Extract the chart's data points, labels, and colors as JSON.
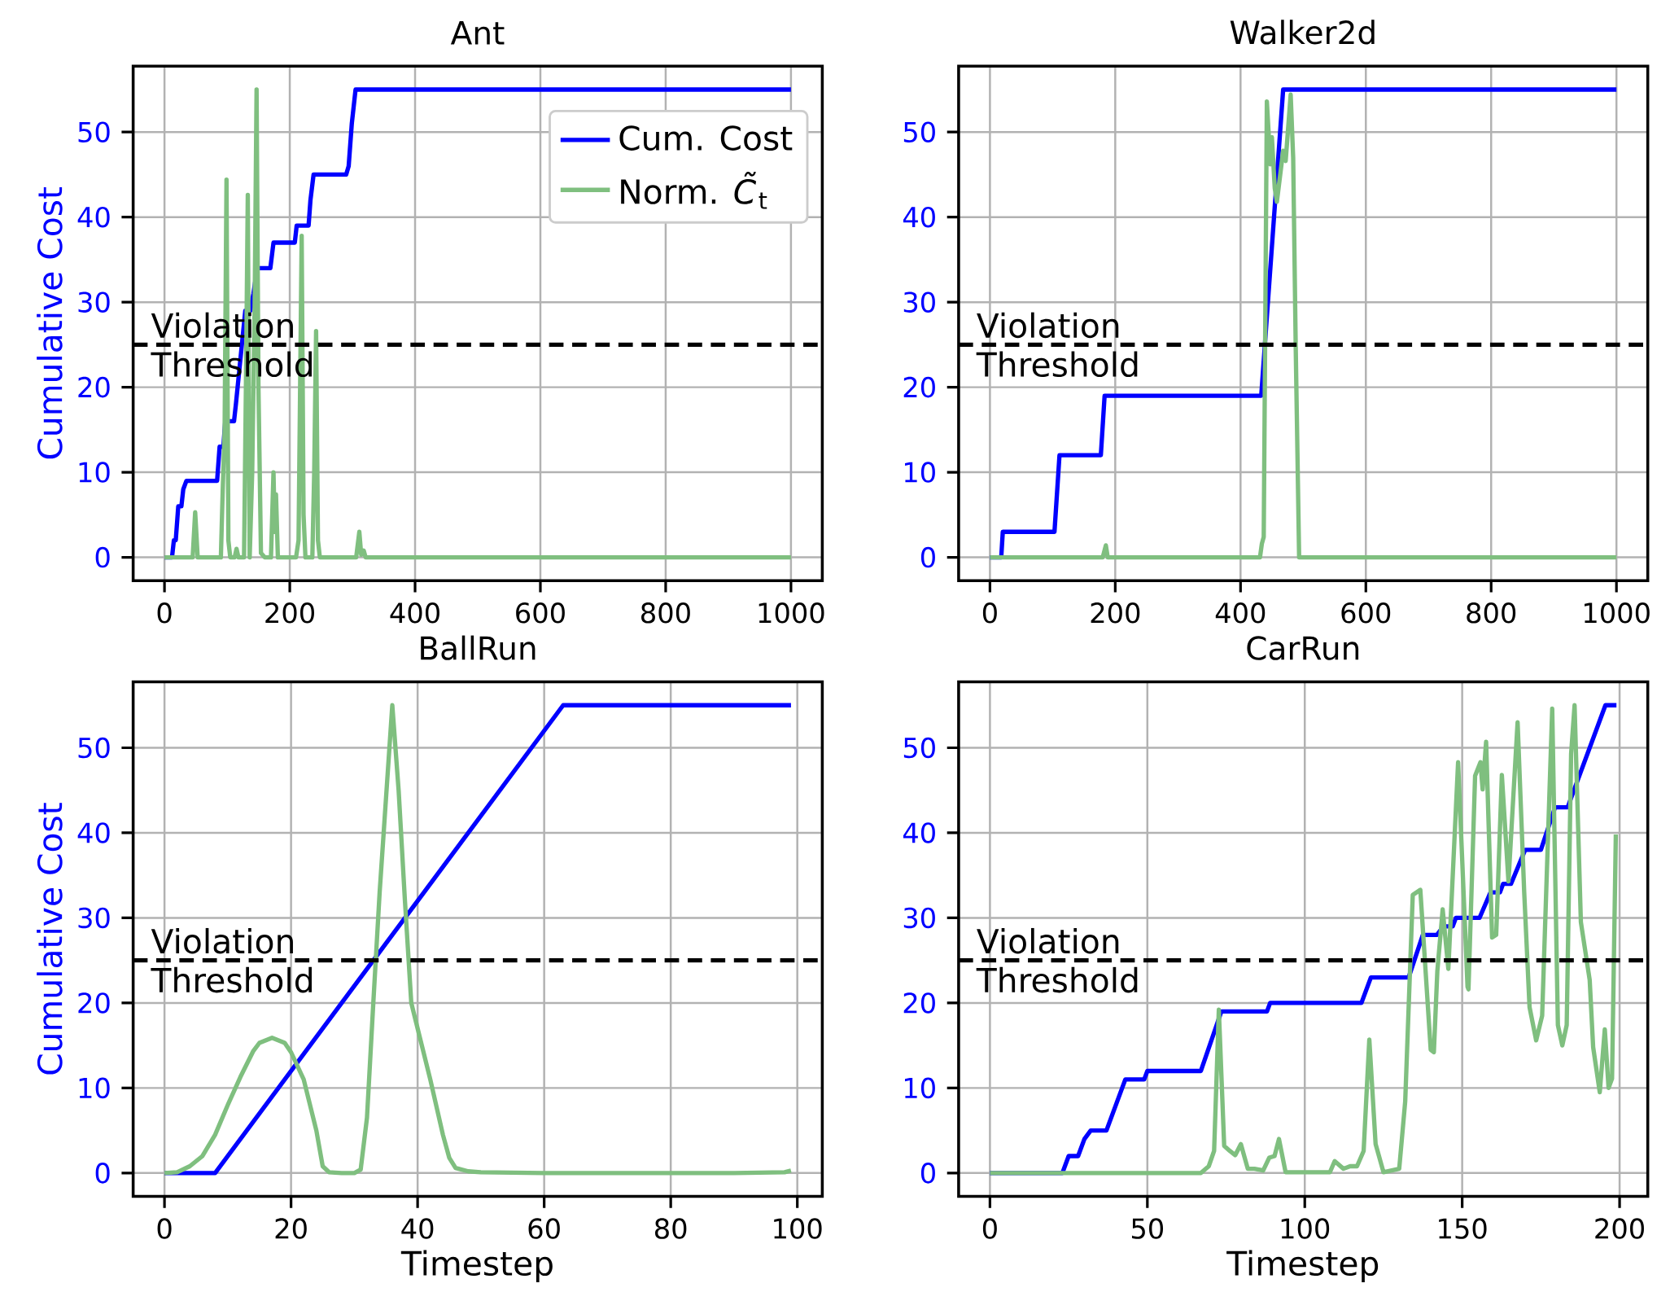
{
  "chart_data": [
    {
      "type": "line",
      "title": "Ant",
      "ylabel": "Cumulative Cost",
      "xlim": [
        -50,
        1050
      ],
      "ylim": [
        -2.75,
        57.75
      ],
      "xticks": [
        0,
        200,
        400,
        600,
        800,
        1000
      ],
      "yticks": [
        0,
        10,
        20,
        30,
        40,
        50
      ],
      "grid": true,
      "legend": "top right",
      "ref_lines": [
        {
          "axis": "y",
          "value": 25,
          "label": "Violation Threshold",
          "color": "#000000",
          "line_style": "dashed"
        }
      ],
      "series": [
        {
          "name": "Cum. Cost",
          "color": "#0000ff",
          "x": [
            0,
            12,
            15,
            18,
            22,
            27,
            30,
            35,
            38,
            84,
            88,
            94,
            97,
            111,
            114,
            129,
            137,
            142,
            148,
            169,
            174,
            208,
            211,
            230,
            233,
            238,
            290,
            294,
            299,
            305,
            1000
          ],
          "values": [
            0,
            0,
            2,
            2,
            6,
            6,
            8,
            9,
            9,
            9,
            13,
            13,
            16,
            16,
            18,
            29,
            29,
            31,
            34,
            34,
            37,
            37,
            39,
            39,
            42,
            45,
            45,
            46,
            51,
            55,
            55
          ]
        },
        {
          "name": "Norm. *C̃*$_{t}$",
          "color": "#7fbf7f",
          "x": [
            0,
            45,
            49,
            53,
            90,
            93,
            96,
            99,
            102,
            105,
            112,
            115,
            118,
            127,
            130,
            133,
            136,
            140,
            144,
            147,
            150,
            154,
            160,
            170,
            174,
            176,
            178,
            181,
            210,
            214,
            219,
            222,
            225,
            236,
            239,
            242,
            245,
            248,
            306,
            311,
            314,
            318,
            321,
            1000
          ],
          "values": [
            0,
            0,
            5.3,
            0,
            0,
            8,
            15,
            44.4,
            2,
            0,
            0,
            1,
            0,
            0,
            20,
            42.6,
            0,
            10,
            30,
            55,
            20,
            0.5,
            0,
            0,
            10,
            3,
            7.4,
            0,
            0,
            2,
            37.8,
            5,
            0,
            0,
            10,
            26.6,
            2,
            0,
            0,
            3,
            0.3,
            0.8,
            0,
            0
          ]
        }
      ]
    },
    {
      "type": "line",
      "title": "Walker2d",
      "xlim": [
        -50,
        1050
      ],
      "ylim": [
        -2.75,
        57.75
      ],
      "xticks": [
        0,
        200,
        400,
        600,
        800,
        1000
      ],
      "yticks": [
        0,
        10,
        20,
        30,
        40,
        50
      ],
      "grid": true,
      "ref_lines": [
        {
          "axis": "y",
          "value": 25,
          "label": "Violation Threshold",
          "color": "#000000",
          "line_style": "dashed"
        }
      ],
      "series": [
        {
          "color": "#0000ff",
          "x": [
            0,
            18,
            20.5,
            103,
            111,
            177,
            183,
            433,
            468,
            1000
          ],
          "values": [
            0,
            0,
            3,
            3,
            12,
            12,
            19,
            19,
            55,
            55
          ]
        },
        {
          "color": "#7fbf7f",
          "x": [
            0,
            180,
            185,
            188,
            431,
            434,
            437,
            442,
            447.6,
            450,
            454.6,
            458,
            468,
            472,
            480,
            484,
            488,
            493.5,
            1000
          ],
          "values": [
            0,
            0,
            1.4,
            0,
            0,
            1.6,
            2.4,
            53.6,
            46.2,
            49.4,
            43.4,
            41.8,
            47.8,
            46.6,
            54.4,
            47,
            25,
            0,
            0
          ]
        }
      ]
    },
    {
      "type": "line",
      "title": "BallRun",
      "xlabel": "Timestep",
      "ylabel": "Cumulative Cost",
      "xlim": [
        -4.95,
        103.95
      ],
      "ylim": [
        -2.75,
        57.75
      ],
      "xticks": [
        0,
        20,
        40,
        60,
        80,
        100
      ],
      "yticks": [
        0,
        10,
        20,
        30,
        40,
        50
      ],
      "grid": true,
      "ref_lines": [
        {
          "axis": "y",
          "value": 25,
          "label": "Violation Threshold",
          "color": "#000000",
          "line_style": "dashed"
        }
      ],
      "series": [
        {
          "color": "#0000ff",
          "x": [
            0,
            8,
            63,
            99
          ],
          "values": [
            0,
            0,
            55,
            55
          ]
        },
        {
          "color": "#7fbf7f",
          "x": [
            0,
            2,
            4,
            6,
            8,
            10,
            12,
            14,
            15,
            17,
            19,
            20,
            22,
            24,
            25,
            26,
            28,
            30,
            31,
            32,
            33,
            34,
            35,
            36,
            37,
            38,
            39,
            40,
            42,
            44,
            45,
            46,
            48,
            50,
            60,
            70,
            80,
            90,
            98,
            99
          ],
          "values": [
            0,
            0.1,
            0.8,
            2,
            4.5,
            8,
            11.3,
            14.3,
            15.3,
            15.9,
            15.3,
            14.2,
            11,
            5,
            0.8,
            0.1,
            0,
            0,
            0.4,
            6.5,
            20,
            33,
            44,
            55,
            45,
            32,
            20,
            17,
            11,
            4.5,
            1.8,
            0.6,
            0.2,
            0.1,
            0,
            0,
            0,
            0,
            0.1,
            0.3
          ]
        }
      ]
    },
    {
      "type": "line",
      "title": "CarRun",
      "xlabel": "Timestep",
      "xlim": [
        -9.95,
        208.95
      ],
      "ylim": [
        -2.75,
        57.75
      ],
      "xticks": [
        0,
        50,
        100,
        150,
        200
      ],
      "yticks": [
        0,
        10,
        20,
        30,
        40,
        50
      ],
      "grid": true,
      "ref_lines": [
        {
          "axis": "y",
          "value": 25,
          "label": "Violation Threshold",
          "color": "#000000",
          "line_style": "dashed"
        }
      ],
      "series": [
        {
          "color": "#0000ff",
          "x": [
            0,
            23,
            25,
            28,
            30,
            32,
            37,
            43,
            49,
            50,
            67,
            73.5,
            88,
            89,
            118,
            121,
            133,
            137.5,
            142,
            144,
            147,
            148,
            155.5,
            159,
            162,
            163,
            165.5,
            170,
            175,
            179.5,
            183.5,
            195.5,
            199
          ],
          "values": [
            0,
            0,
            2,
            2,
            4,
            5,
            5,
            11,
            11,
            12,
            12,
            19,
            19,
            20,
            20,
            23,
            23,
            28,
            28,
            29,
            29,
            30,
            30,
            33,
            33,
            34,
            34,
            38,
            38,
            43,
            43,
            55,
            55
          ]
        },
        {
          "color": "#7fbf7f",
          "x": [
            0,
            67,
            69.5,
            71.2,
            72.7,
            74.4,
            76.2,
            77.9,
            79.7,
            81.9,
            84,
            86.8,
            88.7,
            90.4,
            91.8,
            93.9,
            108,
            109.5,
            112.3,
            114.4,
            116.6,
            118.7,
            120.5,
            122.5,
            125,
            130,
            131.9,
            134.3,
            136.7,
            140,
            141,
            142.1,
            143.8,
            145.6,
            148.7,
            151.7,
            152,
            154.1,
            155.8,
            156.5,
            157.6,
            159.5,
            160.8,
            162.6,
            164.7,
            167.6,
            169.7,
            171.4,
            173.5,
            175.4,
            178.6,
            180.4,
            181.8,
            183.2,
            184.6,
            185.7,
            187.7,
            190.5,
            191.6,
            193.7,
            195.3,
            196.5,
            197.6,
            198.8
          ],
          "values": [
            0,
            0,
            0.8,
            2.6,
            19.2,
            3.2,
            2.6,
            2.1,
            3.4,
            0.5,
            0.5,
            0.3,
            1.8,
            2,
            4,
            0.1,
            0.1,
            1.4,
            0.5,
            0.8,
            0.8,
            2.6,
            15.7,
            3.4,
            0.1,
            0.5,
            8.4,
            32.7,
            33.3,
            14.5,
            14.2,
            23.7,
            31,
            24,
            48.3,
            21.9,
            21.6,
            46.7,
            48.3,
            45.1,
            50.7,
            27.7,
            28,
            46.8,
            34.3,
            53,
            33,
            19.5,
            15.6,
            18.5,
            54.6,
            17.4,
            15,
            17.4,
            49.3,
            55,
            29.5,
            22.7,
            14.8,
            9.5,
            16.9,
            10,
            11.1,
            39.8
          ]
        }
      ]
    }
  ]
}
